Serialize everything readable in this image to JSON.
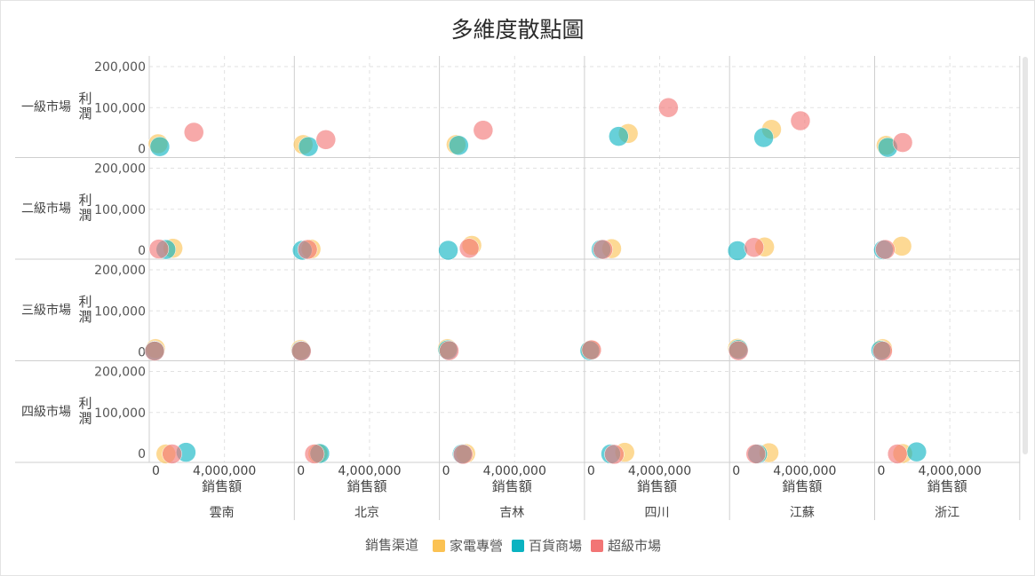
{
  "chart_data": {
    "type": "scatter",
    "title": "多維度散點圖",
    "x_label": "銷售額",
    "y_label": "利潤",
    "x_ticks": [
      {
        "value": 0,
        "label": "0"
      },
      {
        "value": 4000000,
        "label": "4,000,000"
      }
    ],
    "y_ticks": [
      {
        "value": 0,
        "label": "0"
      },
      {
        "value": 100000,
        "label": "100,000"
      },
      {
        "value": 200000,
        "label": "200,000"
      }
    ],
    "xlim": [
      0,
      8000000
    ],
    "ylim": [
      0,
      200000
    ],
    "grid": true,
    "columns": [
      "雲南",
      "北京",
      "吉林",
      "四川",
      "江蘇",
      "浙江"
    ],
    "rows": [
      "一級市場",
      "二級市場",
      "三級市場",
      "四級市場"
    ],
    "legend": {
      "title": "銷售渠道",
      "placement": "bottom",
      "items": [
        {
          "name": "家電專營",
          "color": "#fbc253"
        },
        {
          "name": "百貨商場",
          "color": "#0ab3c1"
        },
        {
          "name": "超級市場",
          "color": "#f27575"
        }
      ]
    },
    "series": [
      {
        "name": "家電專營",
        "color": "#fbc253",
        "points": [
          {
            "row": "一級市場",
            "col": "雲南",
            "x": 200000,
            "y": 12000
          },
          {
            "row": "一級市場",
            "col": "北京",
            "x": 200000,
            "y": 10000
          },
          {
            "row": "一級市場",
            "col": "吉林",
            "x": 650000,
            "y": 10000
          },
          {
            "row": "一級市場",
            "col": "四川",
            "x": 2200000,
            "y": 37000
          },
          {
            "row": "一級市場",
            "col": "江蘇",
            "x": 2100000,
            "y": 47000
          },
          {
            "row": "一級市場",
            "col": "浙江",
            "x": 350000,
            "y": 8000
          },
          {
            "row": "二級市場",
            "col": "雲南",
            "x": 1050000,
            "y": 5000
          },
          {
            "row": "二級市場",
            "col": "北京",
            "x": 650000,
            "y": 3000
          },
          {
            "row": "二級市場",
            "col": "吉林",
            "x": 1550000,
            "y": 12000
          },
          {
            "row": "二級市場",
            "col": "四川",
            "x": 1250000,
            "y": 4000
          },
          {
            "row": "二級市場",
            "col": "江蘇",
            "x": 1700000,
            "y": 8000
          },
          {
            "row": "二級市場",
            "col": "浙江",
            "x": 1250000,
            "y": 10000
          },
          {
            "row": "三級市場",
            "col": "雲南",
            "x": 50000,
            "y": 8000
          },
          {
            "row": "三級市場",
            "col": "北京",
            "x": 50000,
            "y": 6000
          },
          {
            "row": "三級市場",
            "col": "吉林",
            "x": 150000,
            "y": 8000
          },
          {
            "row": "三級市場",
            "col": "四川",
            "x": 50000,
            "y": 5000
          },
          {
            "row": "三級市場",
            "col": "江蘇",
            "x": 150000,
            "y": 9000
          },
          {
            "row": "三級市場",
            "col": "浙江",
            "x": 150000,
            "y": 8000
          },
          {
            "row": "四級市場",
            "col": "雲南",
            "x": 650000,
            "y": -1000
          },
          {
            "row": "四級市場",
            "col": "北京",
            "x": 1050000,
            "y": 0
          },
          {
            "row": "四級市場",
            "col": "吉林",
            "x": 1200000,
            "y": 0
          },
          {
            "row": "四級市場",
            "col": "四川",
            "x": 2000000,
            "y": 3000
          },
          {
            "row": "四級市場",
            "col": "江蘇",
            "x": 1950000,
            "y": 2000
          },
          {
            "row": "四級市場",
            "col": "浙江",
            "x": 1300000,
            "y": 0
          }
        ]
      },
      {
        "name": "百貨商場",
        "color": "#0ab3c1",
        "points": [
          {
            "row": "一級市場",
            "col": "雲南",
            "x": 300000,
            "y": 5000
          },
          {
            "row": "一級市場",
            "col": "北京",
            "x": 500000,
            "y": 5000
          },
          {
            "row": "一級市場",
            "col": "吉林",
            "x": 800000,
            "y": 8000
          },
          {
            "row": "一級市場",
            "col": "四川",
            "x": 1650000,
            "y": 30000
          },
          {
            "row": "一級市場",
            "col": "江蘇",
            "x": 1650000,
            "y": 27000
          },
          {
            "row": "一級市場",
            "col": "浙江",
            "x": 450000,
            "y": 3000
          },
          {
            "row": "二級市場",
            "col": "雲南",
            "x": 650000,
            "y": 2000
          },
          {
            "row": "二級市場",
            "col": "北京",
            "x": 150000,
            "y": 0
          },
          {
            "row": "二級市場",
            "col": "吉林",
            "x": 200000,
            "y": 0
          },
          {
            "row": "二級市場",
            "col": "四川",
            "x": 650000,
            "y": 2000
          },
          {
            "row": "二級市場",
            "col": "江蘇",
            "x": 150000,
            "y": -1000
          },
          {
            "row": "二級市場",
            "col": "浙江",
            "x": 200000,
            "y": 1000
          },
          {
            "row": "三級市場",
            "col": "雲南",
            "x": 0,
            "y": 3000
          },
          {
            "row": "三級市場",
            "col": "北京",
            "x": 80000,
            "y": 3000
          },
          {
            "row": "三級市場",
            "col": "吉林",
            "x": 180000,
            "y": 5000
          },
          {
            "row": "三級市場",
            "col": "四川",
            "x": 0,
            "y": 3000
          },
          {
            "row": "三級市場",
            "col": "江蘇",
            "x": 200000,
            "y": 6000
          },
          {
            "row": "三級市場",
            "col": "浙江",
            "x": 50000,
            "y": 4000
          },
          {
            "row": "四級市場",
            "col": "雲南",
            "x": 1800000,
            "y": 3000
          },
          {
            "row": "四級市場",
            "col": "北京",
            "x": 1150000,
            "y": 0
          },
          {
            "row": "四級市場",
            "col": "吉林",
            "x": 1000000,
            "y": -1000
          },
          {
            "row": "四級市場",
            "col": "四川",
            "x": 1200000,
            "y": -1000
          },
          {
            "row": "四級市場",
            "col": "江蘇",
            "x": 1300000,
            "y": -1000
          },
          {
            "row": "四級市場",
            "col": "浙江",
            "x": 2100000,
            "y": 4000
          }
        ]
      },
      {
        "name": "超級市場",
        "color": "#f27575",
        "points": [
          {
            "row": "一級市場",
            "col": "雲南",
            "x": 2250000,
            "y": 40000
          },
          {
            "row": "一級市場",
            "col": "北京",
            "x": 1500000,
            "y": 22000
          },
          {
            "row": "一級市場",
            "col": "吉林",
            "x": 2200000,
            "y": 45000
          },
          {
            "row": "一級市場",
            "col": "四川",
            "x": 4500000,
            "y": 100000
          },
          {
            "row": "一級市場",
            "col": "江蘇",
            "x": 3750000,
            "y": 68000
          },
          {
            "row": "一級市場",
            "col": "浙江",
            "x": 1300000,
            "y": 15000
          },
          {
            "row": "二級市場",
            "col": "雲南",
            "x": 250000,
            "y": 3000
          },
          {
            "row": "二級市場",
            "col": "北京",
            "x": 450000,
            "y": 2000
          },
          {
            "row": "二級市場",
            "col": "吉林",
            "x": 1400000,
            "y": 5000
          },
          {
            "row": "二級市場",
            "col": "四川",
            "x": 750000,
            "y": 2000
          },
          {
            "row": "二級市場",
            "col": "江蘇",
            "x": 1100000,
            "y": 7000
          },
          {
            "row": "二級市場",
            "col": "浙江",
            "x": 300000,
            "y": 2000
          },
          {
            "row": "三級市場",
            "col": "雲南",
            "x": 0,
            "y": 2000
          },
          {
            "row": "三級市場",
            "col": "北京",
            "x": 100000,
            "y": 2000
          },
          {
            "row": "三級市場",
            "col": "吉林",
            "x": 250000,
            "y": 3000
          },
          {
            "row": "三級市場",
            "col": "四川",
            "x": 100000,
            "y": 5000
          },
          {
            "row": "三級市場",
            "col": "江蘇",
            "x": 200000,
            "y": 3000
          },
          {
            "row": "三級市場",
            "col": "浙江",
            "x": 150000,
            "y": 2000
          },
          {
            "row": "四級市場",
            "col": "雲南",
            "x": 1000000,
            "y": -1000
          },
          {
            "row": "四級市場",
            "col": "北京",
            "x": 850000,
            "y": -1000
          },
          {
            "row": "四級市場",
            "col": "吉林",
            "x": 1050000,
            "y": -2000
          },
          {
            "row": "四級市場",
            "col": "四川",
            "x": 1400000,
            "y": -2000
          },
          {
            "row": "四級市場",
            "col": "江蘇",
            "x": 1200000,
            "y": -1000
          },
          {
            "row": "四級市場",
            "col": "浙江",
            "x": 1000000,
            "y": -1000
          }
        ]
      }
    ]
  }
}
